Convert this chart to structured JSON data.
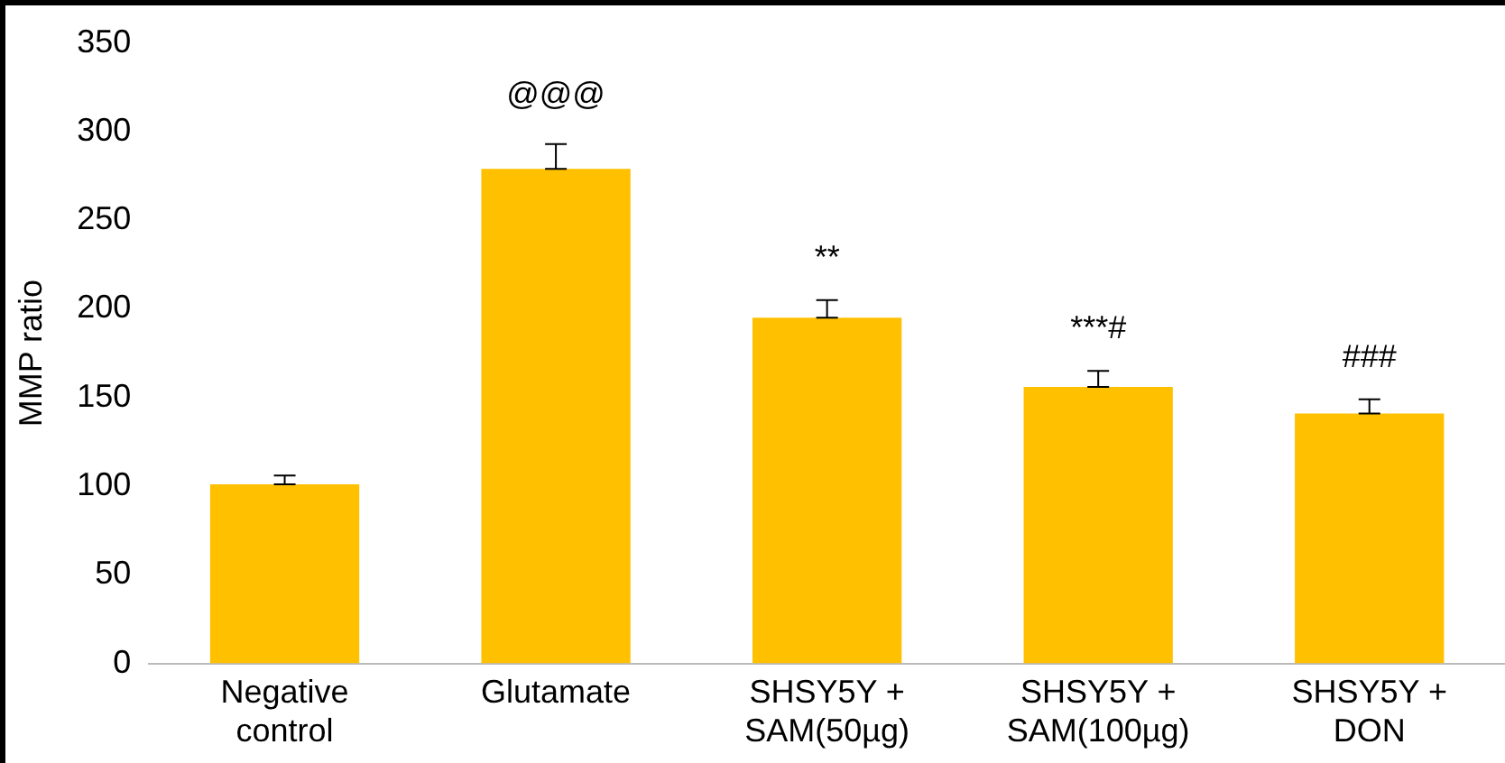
{
  "chart_data": {
    "type": "bar",
    "ylabel": "MMP ratio",
    "categories": [
      "Negative control",
      "Glutamate",
      "SHSY5Y + SAM(50µg)",
      "SHSY5Y + SAM(100µg)",
      "SHSY5Y + DON"
    ],
    "values": [
      101,
      279,
      195,
      156,
      141
    ],
    "errors": [
      [
        101,
        106
      ],
      [
        279,
        293
      ],
      [
        195,
        205
      ],
      [
        156,
        165
      ],
      [
        141,
        149
      ]
    ],
    "color": "#ffc000",
    "ylim": [
      0,
      350
    ],
    "yticks": [
      0,
      50,
      100,
      150,
      200,
      250,
      300,
      350
    ],
    "grid": false,
    "legend": false,
    "annotations": [
      "@@@",
      "**",
      "***#",
      "###"
    ]
  }
}
